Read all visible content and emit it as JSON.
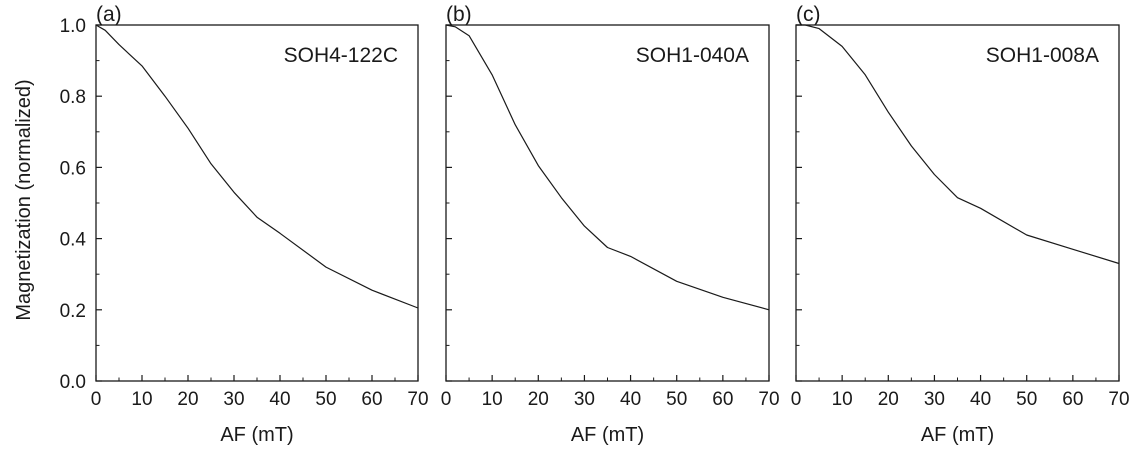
{
  "figure": {
    "ylabel": "Magnetization (normalized)"
  },
  "chart_data": [
    {
      "type": "line",
      "panel_label": "(a)",
      "annotation": "SOH4-122C",
      "xlabel": "AF (mT)",
      "ylabel": "Magnetization (normalized)",
      "xlim": [
        0,
        70
      ],
      "ylim": [
        0,
        1.0
      ],
      "xticks": [
        0,
        10,
        20,
        30,
        40,
        50,
        60,
        70
      ],
      "yticks": [
        0.0,
        0.2,
        0.4,
        0.6,
        0.8,
        1.0
      ],
      "x": [
        0,
        2,
        5,
        10,
        15,
        20,
        25,
        30,
        35,
        40,
        50,
        60,
        70
      ],
      "y": [
        1.0,
        0.985,
        0.945,
        0.885,
        0.8,
        0.71,
        0.61,
        0.53,
        0.46,
        0.415,
        0.32,
        0.255,
        0.205
      ]
    },
    {
      "type": "line",
      "panel_label": "(b)",
      "annotation": "SOH1-040A",
      "xlabel": "AF (mT)",
      "xlim": [
        0,
        70
      ],
      "ylim": [
        0,
        1.0
      ],
      "xticks": [
        0,
        10,
        20,
        30,
        40,
        50,
        60,
        70
      ],
      "yticks": [
        0.0,
        0.2,
        0.4,
        0.6,
        0.8,
        1.0
      ],
      "x": [
        0,
        2,
        5,
        10,
        15,
        20,
        25,
        30,
        35,
        40,
        50,
        60,
        70
      ],
      "y": [
        1.0,
        0.995,
        0.97,
        0.86,
        0.72,
        0.605,
        0.515,
        0.435,
        0.375,
        0.35,
        0.28,
        0.235,
        0.2
      ]
    },
    {
      "type": "line",
      "panel_label": "(c)",
      "annotation": "SOH1-008A",
      "xlabel": "AF (mT)",
      "xlim": [
        0,
        70
      ],
      "ylim": [
        0,
        1.0
      ],
      "xticks": [
        0,
        10,
        20,
        30,
        40,
        50,
        60,
        70
      ],
      "yticks": [
        0.0,
        0.2,
        0.4,
        0.6,
        0.8,
        1.0
      ],
      "x": [
        0,
        2,
        5,
        10,
        15,
        20,
        25,
        30,
        35,
        40,
        50,
        60,
        70
      ],
      "y": [
        1.0,
        1.0,
        0.99,
        0.94,
        0.86,
        0.755,
        0.66,
        0.58,
        0.515,
        0.485,
        0.41,
        0.37,
        0.33
      ]
    }
  ]
}
